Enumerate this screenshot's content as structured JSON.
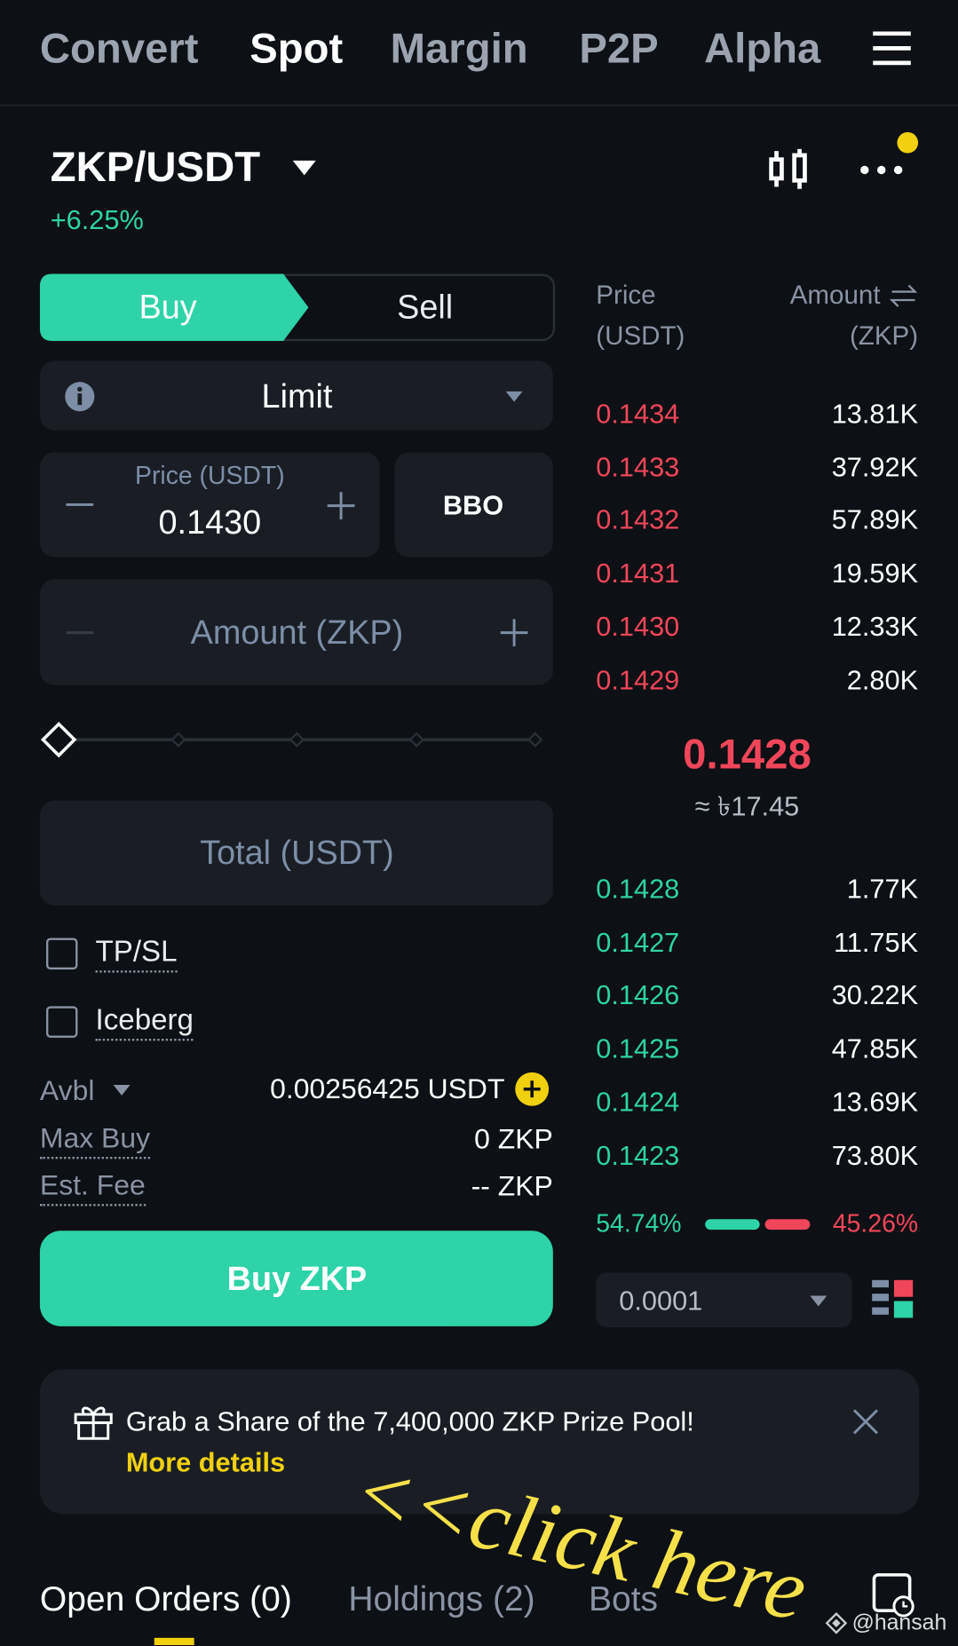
{
  "nav": {
    "tabs": [
      "Convert",
      "Spot",
      "Margin",
      "P2P",
      "Alpha"
    ]
  },
  "pair": {
    "symbol": "ZKP/USDT",
    "change": "+6.25%"
  },
  "order_form": {
    "buy": "Buy",
    "sell": "Sell",
    "order_type": "Limit",
    "price_label": "Price (USDT)",
    "price": "0.1430",
    "bbo": "BBO",
    "amount_label": "Amount (ZKP)",
    "total_label": "Total (USDT)",
    "tpsl": "TP/SL",
    "iceberg": "Iceberg",
    "avbl_label": "Avbl",
    "avbl_value": "0.00256425 USDT",
    "max_buy_label": "Max Buy",
    "max_buy_value": "0 ZKP",
    "fee_label": "Est. Fee",
    "fee_value": "-- ZKP",
    "submit": "Buy ZKP"
  },
  "order_book": {
    "price_header": "Price",
    "price_unit": "(USDT)",
    "amount_header": "Amount",
    "amount_unit": "(ZKP)",
    "asks": [
      [
        "0.1434",
        "13.81K"
      ],
      [
        "0.1433",
        "37.92K"
      ],
      [
        "0.1432",
        "57.89K"
      ],
      [
        "0.1431",
        "19.59K"
      ],
      [
        "0.1430",
        "12.33K"
      ],
      [
        "0.1429",
        "2.80K"
      ]
    ],
    "last_price": "0.1428",
    "last_price_fiat": "≈ ৳17.45",
    "bids": [
      [
        "0.1428",
        "1.77K"
      ],
      [
        "0.1427",
        "11.75K"
      ],
      [
        "0.1426",
        "30.22K"
      ],
      [
        "0.1425",
        "47.85K"
      ],
      [
        "0.1424",
        "13.69K"
      ],
      [
        "0.1423",
        "73.80K"
      ]
    ],
    "buy_ratio": "54.74%",
    "sell_ratio": "45.26%",
    "precision": "0.0001"
  },
  "banner": {
    "text": "Grab a Share of the 7,400,000 ZKP Prize Pool!",
    "link": "More details"
  },
  "annotation": "<<click here",
  "bottom_tabs": [
    "Open Orders (0)",
    "Holdings (2)",
    "Bots"
  ],
  "watermark": "@hansah"
}
